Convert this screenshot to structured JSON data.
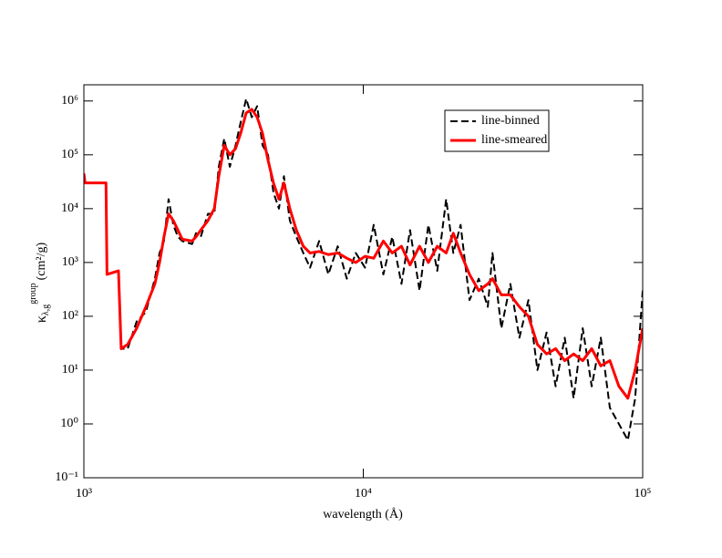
{
  "chart_data": {
    "type": "line",
    "xlabel": "wavelength (Å)",
    "ylabel": {
      "symbol": "κ",
      "sub": "λ,g",
      "sup": "group",
      "unit": "(cm²/g)"
    },
    "xscale": "log",
    "yscale": "log",
    "xlim": [
      1000,
      100000
    ],
    "ylim": [
      0.1,
      2000000
    ],
    "xticks": [
      {
        "value": 1000,
        "label": "10³"
      },
      {
        "value": 10000,
        "label": "10⁴"
      },
      {
        "value": 100000,
        "label": "10⁵"
      }
    ],
    "yticks": [
      {
        "value": 0.1,
        "label": "10⁻¹"
      },
      {
        "value": 1,
        "label": "10⁰"
      },
      {
        "value": 10,
        "label": "10¹"
      },
      {
        "value": 100,
        "label": "10²"
      },
      {
        "value": 1000,
        "label": "10³"
      },
      {
        "value": 10000,
        "label": "10⁴"
      },
      {
        "value": 100000,
        "label": "10⁵"
      },
      {
        "value": 1000000,
        "label": "10⁶"
      }
    ],
    "legend": "upper right",
    "x": [
      1000,
      1010,
      1200,
      1210,
      1330,
      1360,
      1435,
      1545,
      1667,
      1795,
      1866,
      1935,
      2010,
      2090,
      2170,
      2250,
      2440,
      2520,
      2620,
      2780,
      2930,
      3040,
      3180,
      3330,
      3490,
      3640,
      3810,
      3990,
      4170,
      4360,
      4560,
      4770,
      4990,
      5200,
      5460,
      5760,
      6100,
      6450,
      6950,
      7500,
      8100,
      8730,
      9400,
      10150,
      10900,
      11800,
      12700,
      13700,
      14700,
      15900,
      17100,
      18400,
      19800,
      21000,
      22300,
      24000,
      25900,
      27900,
      29000,
      31200,
      33600,
      36200,
      39000,
      42000,
      45300,
      48800,
      52600,
      56600,
      61000,
      65700,
      70800,
      76300,
      82200,
      88500,
      94000,
      100000
    ],
    "series": [
      {
        "name": "line-binned",
        "color": "#000000",
        "dash": true,
        "values": [
          45000,
          30000,
          30000,
          600,
          700,
          25,
          25,
          80,
          120,
          500,
          1500,
          2500,
          15000,
          5000,
          3000,
          2500,
          2200,
          3500,
          3000,
          8000,
          8000,
          60000,
          200000,
          60000,
          150000,
          400000,
          1100000,
          500000,
          800000,
          150000,
          100000,
          20000,
          10000,
          40000,
          6000,
          3000,
          1500,
          800,
          2500,
          600,
          2000,
          500,
          1500,
          800,
          5000,
          600,
          3000,
          400,
          4000,
          300,
          5000,
          700,
          15000,
          1500,
          5000,
          200,
          500,
          150,
          1500,
          60,
          400,
          40,
          200,
          10,
          50,
          5,
          40,
          3,
          60,
          5,
          40,
          2,
          1,
          0.5,
          3,
          300
        ]
      },
      {
        "name": "line-smeared",
        "color": "#ff0000",
        "dash": false,
        "values": [
          45000,
          30000,
          30000,
          600,
          700,
          25,
          30,
          60,
          150,
          400,
          1000,
          3000,
          8000,
          6000,
          4000,
          2700,
          2500,
          3000,
          4000,
          6000,
          10000,
          40000,
          150000,
          100000,
          130000,
          250000,
          600000,
          700000,
          500000,
          250000,
          80000,
          30000,
          15000,
          30000,
          10000,
          4000,
          2000,
          1500,
          1600,
          1400,
          1500,
          1200,
          1000,
          1300,
          1200,
          2500,
          1500,
          2000,
          900,
          2000,
          1000,
          2000,
          1500,
          3500,
          1500,
          600,
          300,
          400,
          500,
          250,
          250,
          150,
          100,
          30,
          20,
          25,
          15,
          20,
          15,
          25,
          12,
          15,
          5,
          3,
          10,
          60
        ]
      }
    ]
  }
}
